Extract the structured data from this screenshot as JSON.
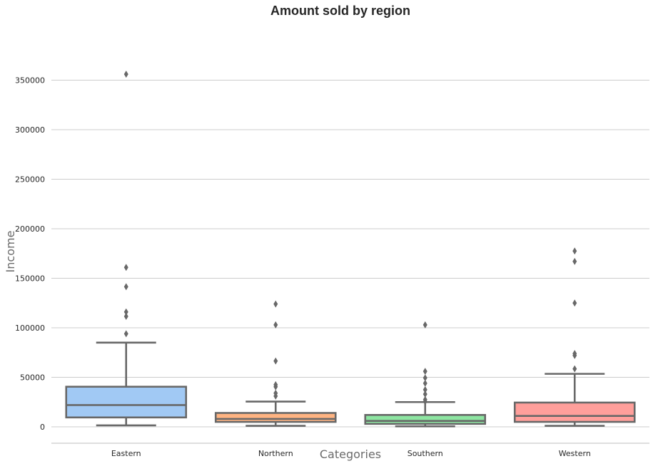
{
  "chart_data": {
    "type": "box",
    "title": "Amount sold by region",
    "xlabel": "Categories",
    "ylabel": "Income",
    "ylim": [
      -17000,
      380000
    ],
    "yticks": [
      0,
      50000,
      100000,
      150000,
      200000,
      250000,
      300000,
      350000
    ],
    "grid": "horizontal",
    "categories": [
      "Eastern",
      "Northern",
      "Southern",
      "Western"
    ],
    "series": [
      {
        "category": "Eastern",
        "color": "#a1c9f4",
        "whisker_low": 1500,
        "q1": 9500,
        "median": 22000,
        "q3": 40500,
        "whisker_high": 85000,
        "outliers": [
          356000,
          161000,
          141500,
          116000,
          111500,
          94000
        ]
      },
      {
        "category": "Northern",
        "color": "#ffb482",
        "whisker_low": 1000,
        "q1": 5000,
        "median": 8000,
        "q3": 14000,
        "whisker_high": 25500,
        "outliers": [
          124000,
          103000,
          66500,
          42500,
          40500,
          34000,
          31000
        ]
      },
      {
        "category": "Southern",
        "color": "#8de5a1",
        "whisker_low": 500,
        "q1": 3000,
        "median": 6000,
        "q3": 12000,
        "whisker_high": 25000,
        "outliers": [
          103000,
          56000,
          49500,
          44000,
          37500,
          33000,
          27500,
          25500
        ]
      },
      {
        "category": "Western",
        "color": "#ff9f9b",
        "whisker_low": 1000,
        "q1": 5000,
        "median": 11000,
        "q3": 24500,
        "whisker_high": 53500,
        "outliers": [
          177500,
          167000,
          125000,
          74000,
          72000,
          58500
        ]
      }
    ]
  }
}
